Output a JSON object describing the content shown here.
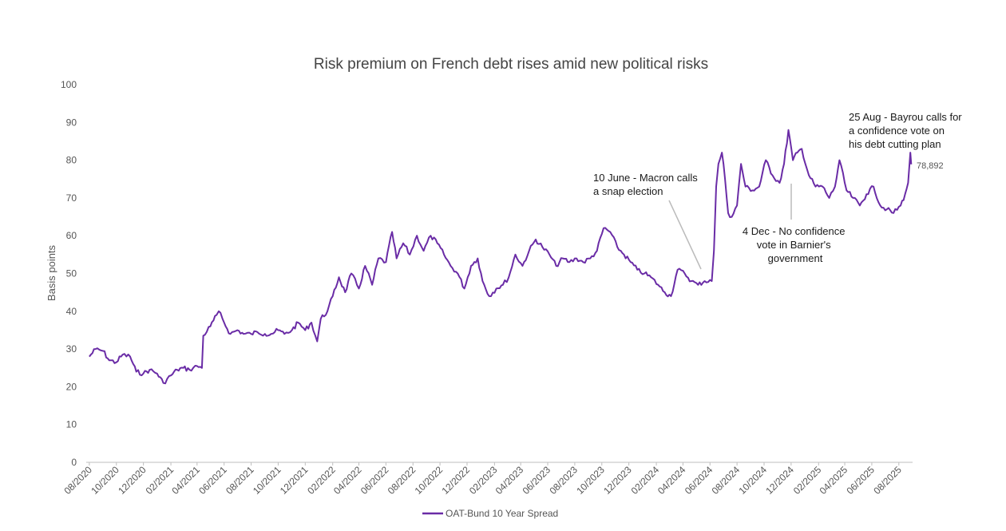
{
  "chart_data": {
    "type": "line",
    "title": "Risk premium on French debt rises amid new political risks",
    "ylabel": "Basis points",
    "ylim": [
      0,
      100
    ],
    "yticks": [
      0,
      10,
      20,
      30,
      40,
      50,
      60,
      70,
      80,
      90,
      100
    ],
    "xlim": [
      "2020-07-25",
      "2025-09-01"
    ],
    "xticks": [
      "08/2020",
      "10/2020",
      "12/2020",
      "02/2021",
      "04/2021",
      "06/2021",
      "08/2021",
      "10/2021",
      "12/2021",
      "02/2022",
      "04/2022",
      "06/2022",
      "08/2022",
      "10/2022",
      "12/2022",
      "02/2023",
      "04/2023",
      "06/2023",
      "08/2023",
      "10/2023",
      "12/2023",
      "02/2024",
      "04/2024",
      "06/2024",
      "08/2024",
      "10/2024",
      "12/2024",
      "02/2025",
      "04/2025",
      "06/2025",
      "08/2025"
    ],
    "grid": false,
    "legend_position": "bottom",
    "colors": {
      "series": "#6a2ca6",
      "annotation_line": "#bbbbbb"
    },
    "last_value_label": "78,892",
    "series": [
      {
        "name": "OAT-Bund 10 Year Spread",
        "points": [
          [
            "2020-08-01",
            28
          ],
          [
            "2020-08-15",
            30
          ],
          [
            "2020-09-01",
            29.5
          ],
          [
            "2020-09-15",
            27
          ],
          [
            "2020-10-01",
            26.5
          ],
          [
            "2020-10-15",
            28.5
          ],
          [
            "2020-11-01",
            28
          ],
          [
            "2020-11-15",
            24
          ],
          [
            "2020-12-01",
            23.5
          ],
          [
            "2020-12-15",
            24.5
          ],
          [
            "2021-01-01",
            23.5
          ],
          [
            "2021-01-15",
            21
          ],
          [
            "2021-02-01",
            23
          ],
          [
            "2021-02-15",
            24.5
          ],
          [
            "2021-03-01",
            25
          ],
          [
            "2021-03-15",
            24.5
          ],
          [
            "2021-04-01",
            25.5
          ],
          [
            "2021-04-12",
            25
          ],
          [
            "2021-04-15",
            33.5
          ],
          [
            "2021-05-01",
            36
          ],
          [
            "2021-05-15",
            39
          ],
          [
            "2021-05-20",
            40
          ],
          [
            "2021-06-01",
            37
          ],
          [
            "2021-06-15",
            34
          ],
          [
            "2021-07-01",
            35
          ],
          [
            "2021-07-15",
            34
          ],
          [
            "2021-08-01",
            34
          ],
          [
            "2021-08-15",
            34.5
          ],
          [
            "2021-09-01",
            34
          ],
          [
            "2021-09-15",
            34
          ],
          [
            "2021-10-01",
            35
          ],
          [
            "2021-10-15",
            34
          ],
          [
            "2021-11-01",
            35
          ],
          [
            "2021-11-15",
            37
          ],
          [
            "2021-12-01",
            35
          ],
          [
            "2021-12-15",
            37
          ],
          [
            "2021-12-28",
            32
          ],
          [
            "2022-01-05",
            38
          ],
          [
            "2022-01-20",
            40
          ],
          [
            "2022-02-01",
            44
          ],
          [
            "2022-02-15",
            49
          ],
          [
            "2022-03-01",
            45
          ],
          [
            "2022-03-15",
            50
          ],
          [
            "2022-04-01",
            46
          ],
          [
            "2022-04-15",
            52
          ],
          [
            "2022-05-01",
            47
          ],
          [
            "2022-05-15",
            54
          ],
          [
            "2022-06-01",
            53
          ],
          [
            "2022-06-15",
            61
          ],
          [
            "2022-06-25",
            54
          ],
          [
            "2022-07-10",
            58
          ],
          [
            "2022-07-25",
            55
          ],
          [
            "2022-08-10",
            60
          ],
          [
            "2022-08-25",
            56
          ],
          [
            "2022-09-10",
            60
          ],
          [
            "2022-09-25",
            58
          ],
          [
            "2022-10-10",
            55
          ],
          [
            "2022-10-25",
            52
          ],
          [
            "2022-11-10",
            50
          ],
          [
            "2022-11-25",
            46
          ],
          [
            "2022-12-10",
            52
          ],
          [
            "2022-12-25",
            54
          ],
          [
            "2023-01-05",
            48
          ],
          [
            "2023-01-20",
            44
          ],
          [
            "2023-02-05",
            46
          ],
          [
            "2023-02-20",
            47
          ],
          [
            "2023-03-05",
            49
          ],
          [
            "2023-03-20",
            55
          ],
          [
            "2023-04-05",
            52
          ],
          [
            "2023-04-20",
            56
          ],
          [
            "2023-05-05",
            59
          ],
          [
            "2023-05-20",
            57
          ],
          [
            "2023-06-05",
            55
          ],
          [
            "2023-06-20",
            52
          ],
          [
            "2023-07-05",
            54
          ],
          [
            "2023-07-20",
            53
          ],
          [
            "2023-08-05",
            54
          ],
          [
            "2023-08-20",
            53
          ],
          [
            "2023-09-05",
            54
          ],
          [
            "2023-09-20",
            56
          ],
          [
            "2023-10-05",
            62
          ],
          [
            "2023-10-20",
            61
          ],
          [
            "2023-11-05",
            57
          ],
          [
            "2023-11-20",
            55
          ],
          [
            "2023-12-05",
            53
          ],
          [
            "2023-12-20",
            51
          ],
          [
            "2024-01-05",
            50
          ],
          [
            "2024-01-20",
            49
          ],
          [
            "2024-02-05",
            47
          ],
          [
            "2024-02-20",
            45
          ],
          [
            "2024-03-05",
            44
          ],
          [
            "2024-03-20",
            51
          ],
          [
            "2024-04-05",
            50
          ],
          [
            "2024-04-20",
            48
          ],
          [
            "2024-05-05",
            47
          ],
          [
            "2024-05-20",
            48
          ],
          [
            "2024-06-05",
            48
          ],
          [
            "2024-06-10",
            56
          ],
          [
            "2024-06-15",
            73
          ],
          [
            "2024-06-20",
            79
          ],
          [
            "2024-06-28",
            82
          ],
          [
            "2024-07-05",
            75
          ],
          [
            "2024-07-12",
            66
          ],
          [
            "2024-07-20",
            65
          ],
          [
            "2024-08-01",
            68
          ],
          [
            "2024-08-10",
            79
          ],
          [
            "2024-08-20",
            73
          ],
          [
            "2024-09-05",
            72
          ],
          [
            "2024-09-20",
            73
          ],
          [
            "2024-10-05",
            80
          ],
          [
            "2024-10-20",
            76
          ],
          [
            "2024-11-05",
            74
          ],
          [
            "2024-11-15",
            79
          ],
          [
            "2024-11-25",
            88
          ],
          [
            "2024-12-05",
            80
          ],
          [
            "2024-12-15",
            82
          ],
          [
            "2024-12-25",
            83
          ],
          [
            "2025-01-10",
            76
          ],
          [
            "2025-01-25",
            73
          ],
          [
            "2025-02-10",
            73
          ],
          [
            "2025-02-25",
            70
          ],
          [
            "2025-03-10",
            73
          ],
          [
            "2025-03-20",
            80
          ],
          [
            "2025-04-05",
            72
          ],
          [
            "2025-04-20",
            70
          ],
          [
            "2025-05-05",
            68
          ],
          [
            "2025-05-20",
            71
          ],
          [
            "2025-06-05",
            73
          ],
          [
            "2025-06-20",
            68
          ],
          [
            "2025-07-05",
            67
          ],
          [
            "2025-07-20",
            66
          ],
          [
            "2025-08-05",
            68
          ],
          [
            "2025-08-15",
            71
          ],
          [
            "2025-08-22",
            74
          ],
          [
            "2025-08-27",
            82
          ],
          [
            "2025-08-29",
            78.892
          ]
        ]
      }
    ],
    "annotations": [
      {
        "lines": [
          "10 June - Macron calls",
          "a snap election"
        ],
        "date": "2024-06-10",
        "value": 51,
        "anchor": "start"
      },
      {
        "lines": [
          "4 Dec - No confidence",
          "vote in Barnier's",
          "government"
        ],
        "date": "2024-12-04",
        "value": 73,
        "anchor": "middle"
      },
      {
        "lines": [
          "25 Aug - Bayrou calls for",
          "a confidence vote on",
          "his debt cutting plan"
        ],
        "date": "2025-08-25",
        "value": 82,
        "anchor": "start"
      }
    ]
  }
}
